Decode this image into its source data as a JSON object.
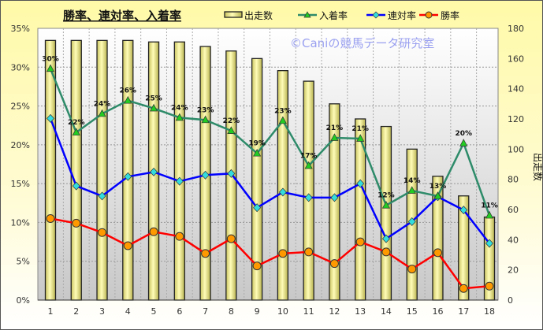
{
  "chart_data": {
    "type": "bar+line",
    "title": "勝率、連対率、入着率",
    "watermark": "©Caniの競馬データ研究室",
    "categories": [
      "1",
      "2",
      "3",
      "4",
      "5",
      "6",
      "7",
      "8",
      "9",
      "10",
      "11",
      "12",
      "13",
      "14",
      "15",
      "16",
      "17",
      "18"
    ],
    "y_left": {
      "range": [
        0,
        35
      ],
      "ticks": [
        "0%",
        "5%",
        "10%",
        "15%",
        "20%",
        "25%",
        "30%",
        "35%"
      ]
    },
    "y_right": {
      "label": "出走数",
      "range": [
        0,
        180
      ],
      "ticks": [
        "0",
        "20",
        "40",
        "60",
        "80",
        "100",
        "120",
        "140",
        "160",
        "180"
      ]
    },
    "grid": true,
    "legend_position": "top",
    "series": [
      {
        "name": "出走数",
        "type": "bar",
        "axis": "right",
        "color": "#f2ee8a",
        "values": [
          172,
          172,
          172,
          172,
          171,
          171,
          168,
          165,
          160,
          152,
          145,
          130,
          120,
          115,
          100,
          82,
          69,
          55
        ]
      },
      {
        "name": "入着率",
        "type": "line",
        "axis": "left",
        "color": "#2e8b6a",
        "marker": "triangle",
        "marker_color": "#22cc22",
        "values": [
          29.8,
          21.6,
          24.0,
          25.7,
          24.7,
          23.5,
          23.2,
          21.8,
          18.9,
          23.1,
          17.3,
          20.9,
          20.8,
          12.2,
          14.1,
          13.4,
          20.2,
          10.9
        ],
        "data_labels": [
          "30%",
          "22%",
          "24%",
          "26%",
          "25%",
          "24%",
          "23%",
          "22%",
          "19%",
          "23%",
          "17%",
          "21%",
          "21%",
          "12%",
          "14%",
          "13%",
          "20%",
          "11%"
        ]
      },
      {
        "name": "連対率",
        "type": "line",
        "axis": "left",
        "color": "#0000ff",
        "marker": "diamond",
        "marker_color": "#33dddd",
        "values": [
          23.4,
          14.7,
          13.4,
          15.9,
          16.5,
          15.3,
          16.1,
          16.3,
          11.9,
          13.9,
          13.2,
          13.2,
          15.0,
          7.9,
          10.1,
          13.3,
          11.6,
          7.3
        ]
      },
      {
        "name": "勝率",
        "type": "line",
        "axis": "left",
        "color": "#ff0000",
        "marker": "circle",
        "marker_color": "#ff9900",
        "values": [
          10.5,
          9.9,
          8.7,
          7.0,
          8.8,
          8.2,
          6.0,
          7.9,
          4.4,
          6.0,
          6.2,
          4.7,
          7.5,
          6.2,
          4.0,
          6.1,
          1.5,
          1.8
        ]
      }
    ]
  }
}
